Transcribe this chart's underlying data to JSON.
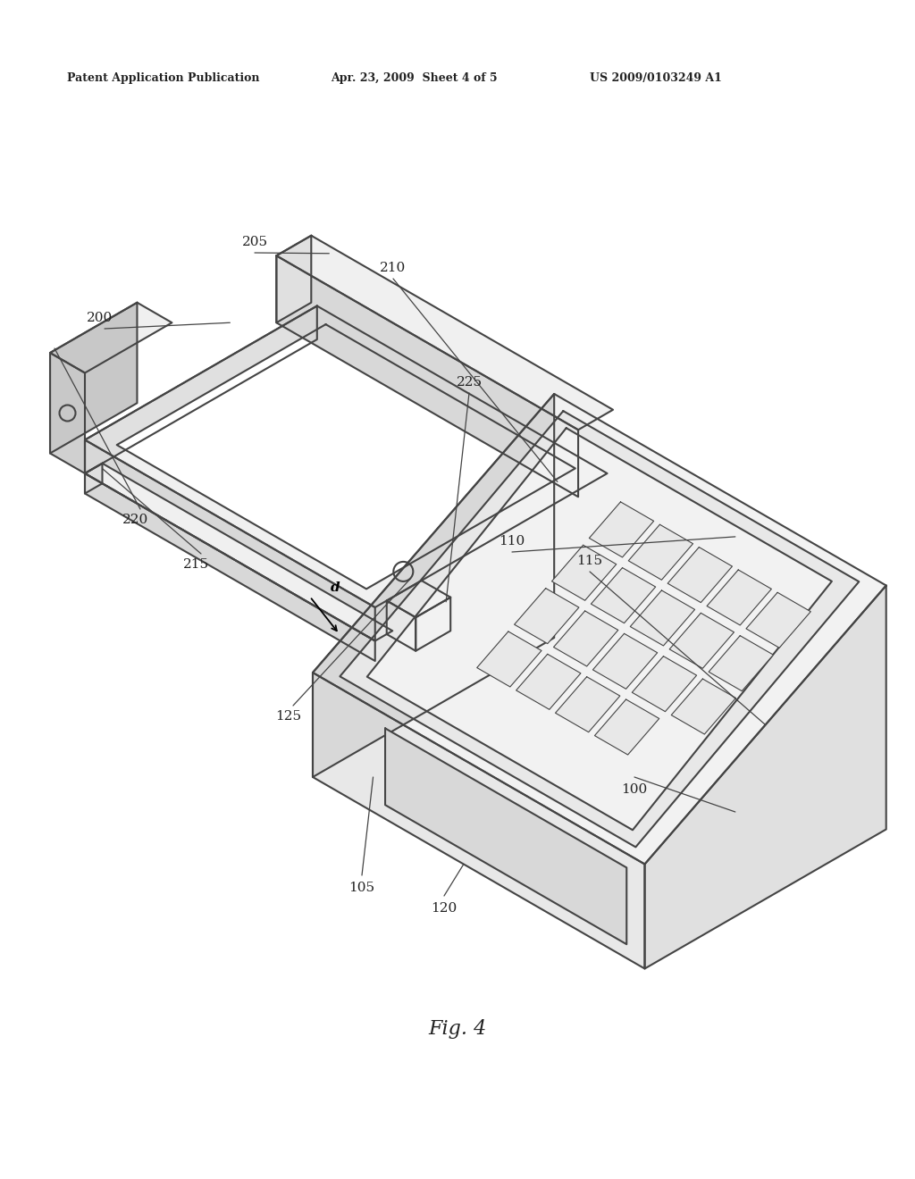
{
  "bg_color": "#ffffff",
  "line_color": "#444444",
  "text_color": "#222222",
  "header_left": "Patent Application Publication",
  "header_mid": "Apr. 23, 2009  Sheet 4 of 5",
  "header_right": "US 2009/0103249 A1",
  "fig_label": "Fig. 4"
}
